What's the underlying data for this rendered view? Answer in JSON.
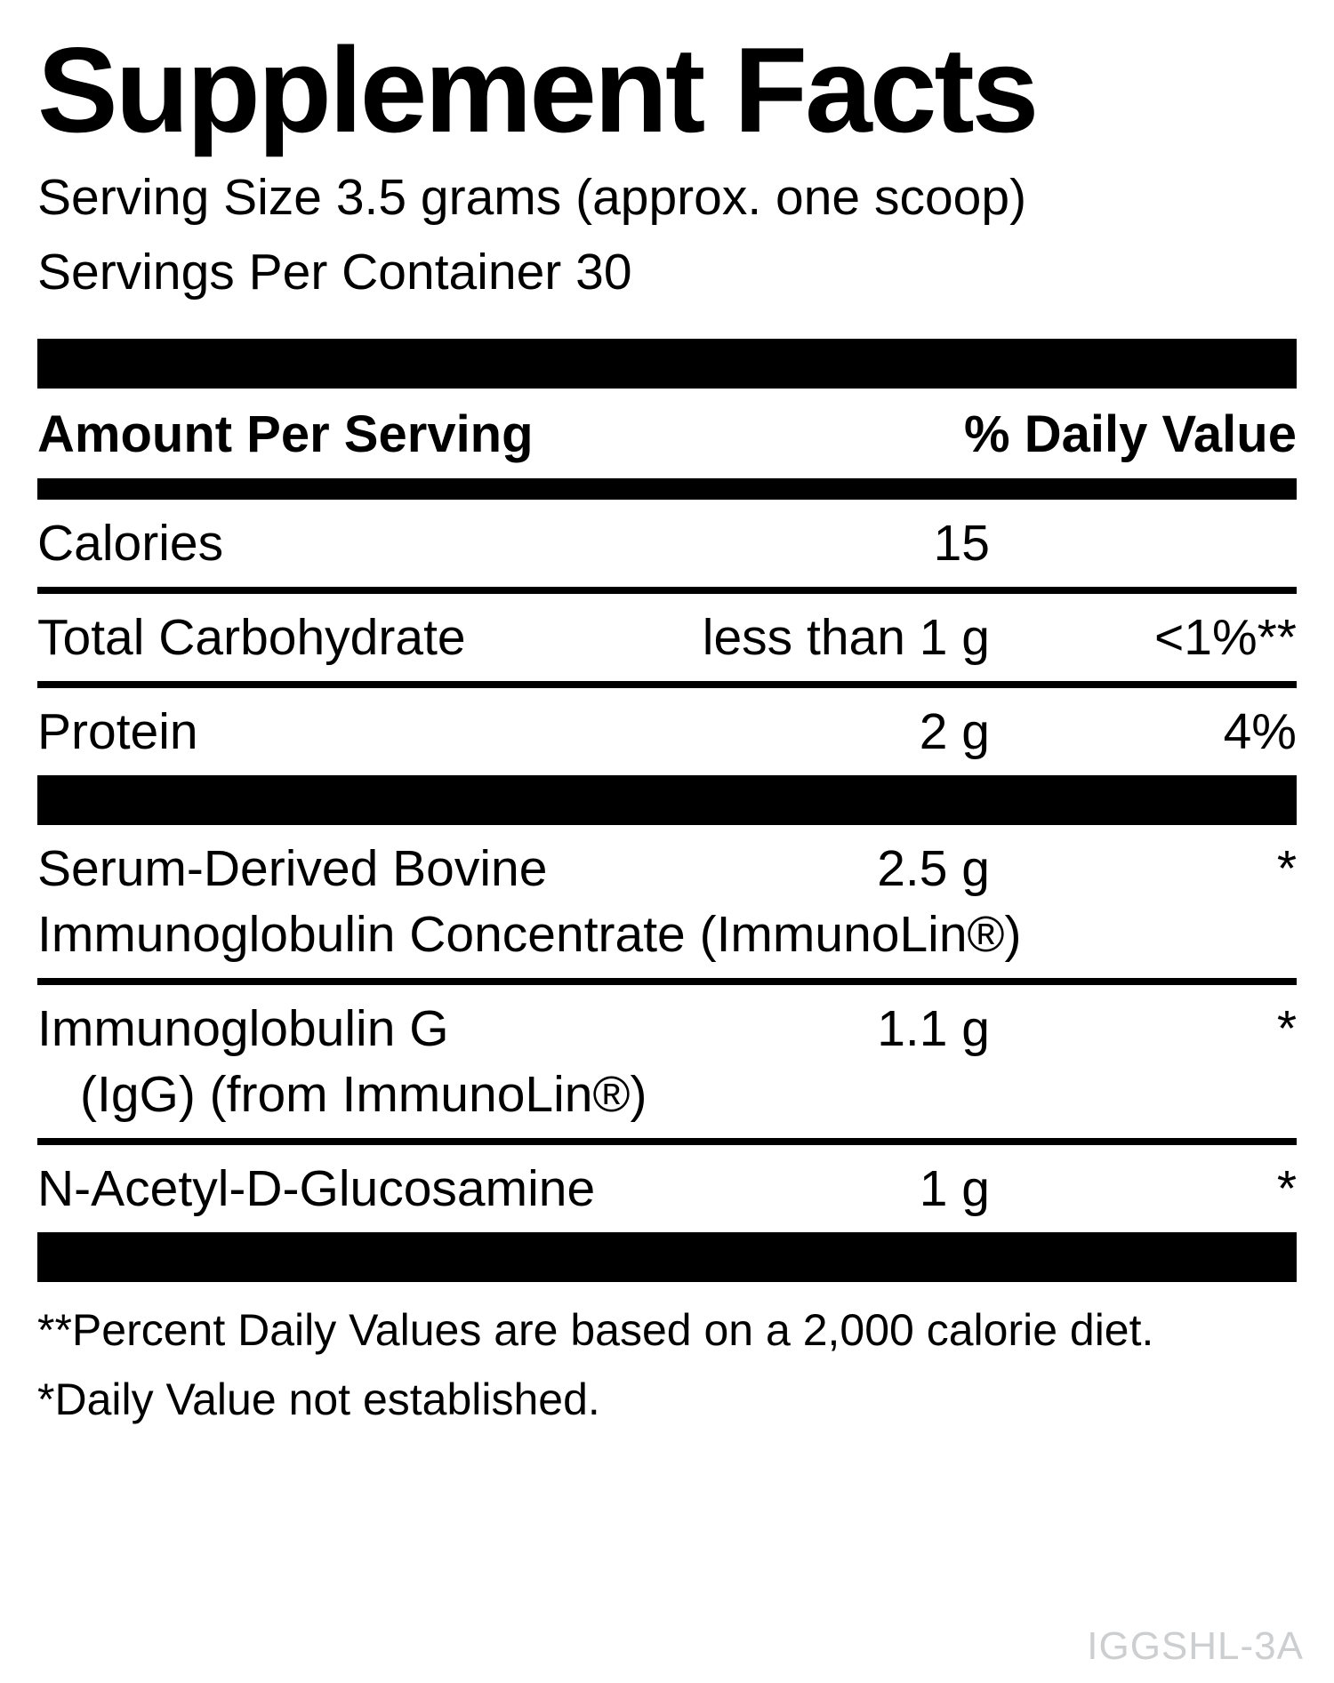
{
  "label": {
    "title": "Supplement Facts",
    "serving_size": "Serving Size 3.5 grams (approx. one scoop)",
    "servings_per_container": "Servings Per Container 30",
    "columns": {
      "amount_header": "Amount Per Serving",
      "daily_value_header": "% Daily Value"
    },
    "nutrients": [
      {
        "name": "Calories",
        "amount": "15",
        "dv": ""
      },
      {
        "name": "Total Carbohydrate",
        "amount": "less than 1 g",
        "dv": "<1%**"
      },
      {
        "name": "Protein",
        "amount": "2 g",
        "dv": "4%"
      }
    ],
    "ingredients": [
      {
        "name": "Serum-Derived Bovine",
        "name2": "Immunoglobulin Concentrate (ImmunoLin®)",
        "amount": "2.5 g",
        "dv": "*"
      },
      {
        "name": "Immunoglobulin G",
        "name2": "(IgG) (from ImmunoLin®)",
        "amount": "1.1 g",
        "dv": "*"
      },
      {
        "name": "N-Acetyl-D-Glucosamine",
        "name2": "",
        "amount": "1 g",
        "dv": "*"
      }
    ],
    "footnotes": [
      "**Percent Daily Values are based on a 2,000 calorie diet.",
      "*Daily Value not established."
    ],
    "code": "IGGSHL-3A"
  }
}
